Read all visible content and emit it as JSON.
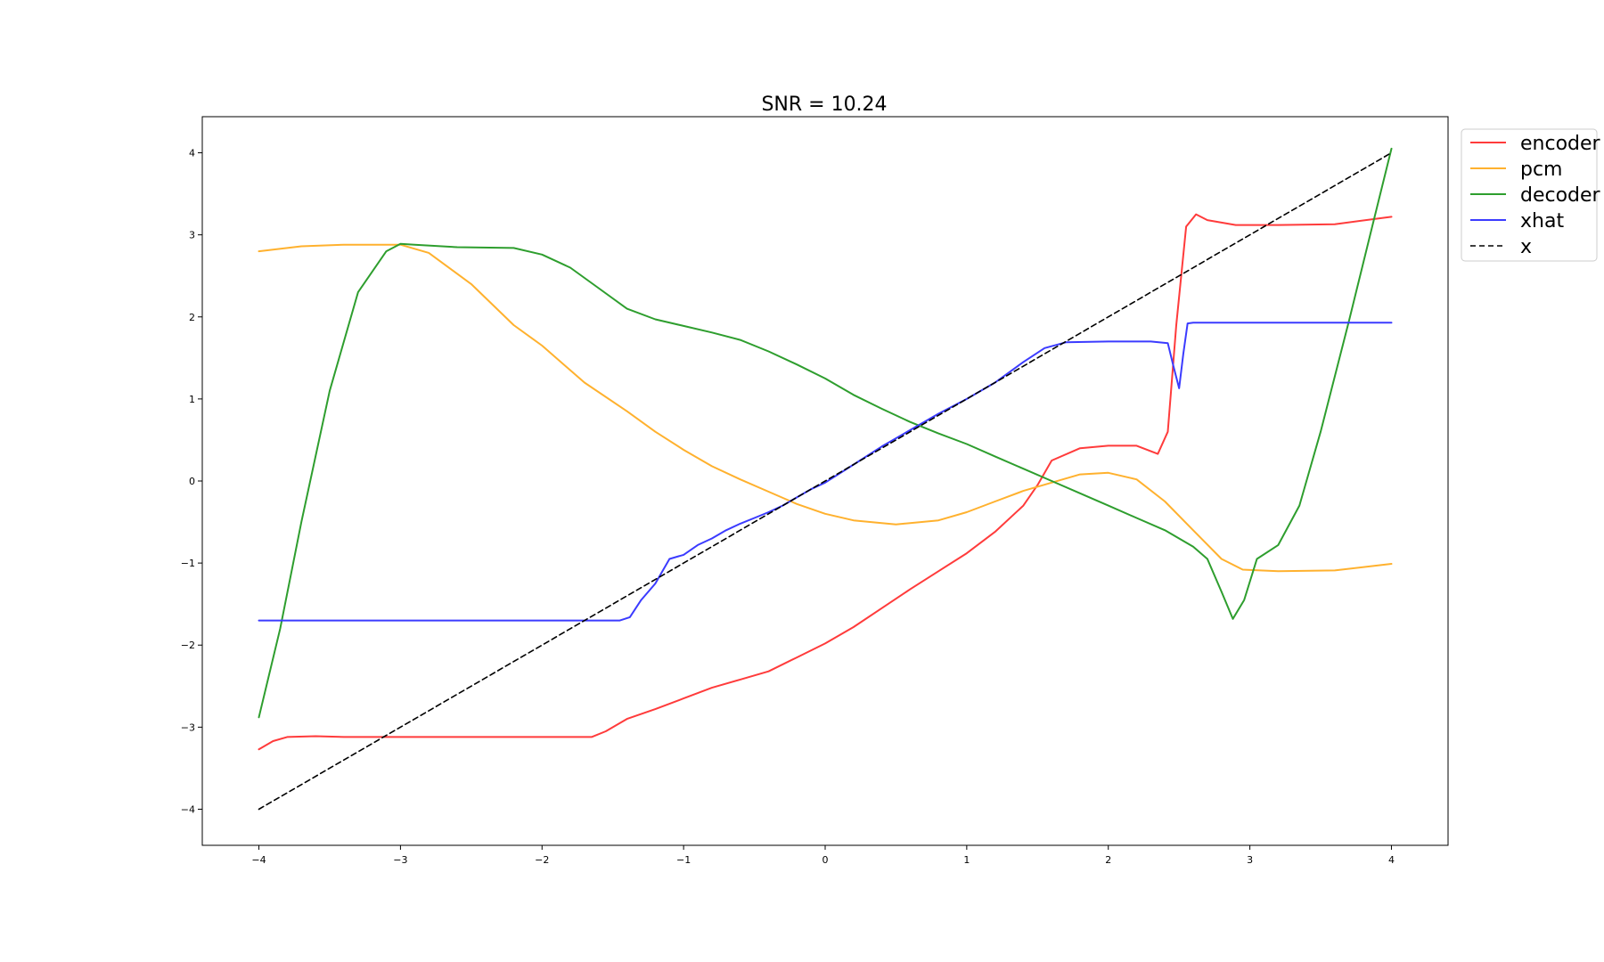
{
  "chart_data": {
    "type": "line",
    "title": "SNR = 10.24",
    "xlabel": "",
    "ylabel": "",
    "xlim": [
      -4.4,
      4.4
    ],
    "ylim": [
      -4.44,
      4.44
    ],
    "xticks": [
      -4,
      -3,
      -2,
      -1,
      0,
      1,
      2,
      3,
      4
    ],
    "yticks": [
      -4,
      -3,
      -2,
      -1,
      0,
      1,
      2,
      3,
      4
    ],
    "xtick_labels": [
      "−4",
      "−3",
      "−2",
      "−1",
      "0",
      "1",
      "2",
      "3",
      "4"
    ],
    "ytick_labels": [
      "−4",
      "−3",
      "−2",
      "−1",
      "0",
      "1",
      "2",
      "3",
      "4"
    ],
    "grid": false,
    "legend_placement": "outside-top-right",
    "series": [
      {
        "name": "encoder",
        "color": "#ff3b3b",
        "dash": "solid",
        "x": [
          -4.0,
          -3.9,
          -3.8,
          -3.6,
          -3.4,
          -3.0,
          -2.5,
          -2.0,
          -1.65,
          -1.55,
          -1.4,
          -1.2,
          -1.0,
          -0.8,
          -0.6,
          -0.4,
          -0.2,
          0.0,
          0.2,
          0.4,
          0.6,
          0.8,
          1.0,
          1.2,
          1.4,
          1.5,
          1.6,
          1.8,
          2.0,
          2.2,
          2.35,
          2.42,
          2.48,
          2.55,
          2.62,
          2.7,
          2.9,
          3.2,
          3.6,
          4.0
        ],
        "y": [
          -3.27,
          -3.17,
          -3.12,
          -3.11,
          -3.12,
          -3.12,
          -3.12,
          -3.12,
          -3.12,
          -3.05,
          -2.9,
          -2.78,
          -2.65,
          -2.52,
          -2.42,
          -2.32,
          -2.15,
          -1.98,
          -1.78,
          -1.55,
          -1.32,
          -1.1,
          -0.88,
          -0.62,
          -0.3,
          -0.05,
          0.25,
          0.4,
          0.43,
          0.43,
          0.33,
          0.6,
          1.9,
          3.1,
          3.25,
          3.18,
          3.12,
          3.12,
          3.13,
          3.22
        ]
      },
      {
        "name": "pcm",
        "color": "#ffb12e",
        "dash": "solid",
        "x": [
          -4.0,
          -3.7,
          -3.4,
          -3.0,
          -2.8,
          -2.5,
          -2.2,
          -2.0,
          -1.7,
          -1.4,
          -1.2,
          -1.0,
          -0.8,
          -0.6,
          -0.4,
          -0.2,
          0.0,
          0.2,
          0.5,
          0.8,
          1.0,
          1.2,
          1.4,
          1.6,
          1.8,
          2.0,
          2.2,
          2.4,
          2.6,
          2.8,
          2.95,
          3.2,
          3.6,
          4.0
        ],
        "y": [
          2.8,
          2.86,
          2.88,
          2.88,
          2.78,
          2.4,
          1.9,
          1.65,
          1.2,
          0.85,
          0.6,
          0.38,
          0.18,
          0.02,
          -0.13,
          -0.28,
          -0.4,
          -0.48,
          -0.53,
          -0.48,
          -0.38,
          -0.25,
          -0.12,
          -0.02,
          0.08,
          0.1,
          0.02,
          -0.25,
          -0.6,
          -0.95,
          -1.08,
          -1.1,
          -1.09,
          -1.01
        ]
      },
      {
        "name": "decoder",
        "color": "#2e9e2e",
        "dash": "solid",
        "x": [
          -4.0,
          -3.85,
          -3.7,
          -3.5,
          -3.3,
          -3.1,
          -3.0,
          -2.9,
          -2.6,
          -2.2,
          -2.0,
          -1.8,
          -1.6,
          -1.4,
          -1.2,
          -1.0,
          -0.8,
          -0.6,
          -0.4,
          -0.2,
          0.0,
          0.2,
          0.4,
          0.6,
          0.8,
          1.0,
          1.2,
          1.4,
          1.6,
          1.8,
          2.0,
          2.2,
          2.4,
          2.6,
          2.7,
          2.8,
          2.88,
          2.96,
          3.05,
          3.2,
          3.35,
          3.5,
          3.7,
          3.85,
          4.0
        ],
        "y": [
          -2.88,
          -1.8,
          -0.5,
          1.1,
          2.3,
          2.8,
          2.89,
          2.88,
          2.85,
          2.84,
          2.76,
          2.6,
          2.35,
          2.1,
          1.97,
          1.89,
          1.81,
          1.72,
          1.58,
          1.42,
          1.25,
          1.05,
          0.88,
          0.72,
          0.58,
          0.45,
          0.3,
          0.15,
          0.0,
          -0.15,
          -0.3,
          -0.45,
          -0.6,
          -0.8,
          -0.95,
          -1.35,
          -1.68,
          -1.45,
          -0.95,
          -0.78,
          -0.3,
          0.6,
          1.95,
          3.0,
          4.05
        ]
      },
      {
        "name": "xhat",
        "color": "#3b3bff",
        "dash": "solid",
        "x": [
          -4.0,
          -3.0,
          -2.0,
          -1.45,
          -1.38,
          -1.3,
          -1.2,
          -1.1,
          -1.0,
          -0.9,
          -0.8,
          -0.7,
          -0.6,
          -0.5,
          -0.4,
          -0.3,
          -0.2,
          -0.1,
          0.0,
          0.2,
          0.4,
          0.6,
          0.8,
          1.0,
          1.2,
          1.4,
          1.55,
          1.7,
          2.0,
          2.3,
          2.42,
          2.46,
          2.5,
          2.53,
          2.56,
          2.6,
          3.0,
          3.5,
          4.0
        ],
        "y": [
          -1.7,
          -1.7,
          -1.7,
          -1.7,
          -1.66,
          -1.45,
          -1.25,
          -0.95,
          -0.9,
          -0.78,
          -0.7,
          -0.6,
          -0.52,
          -0.45,
          -0.38,
          -0.3,
          -0.2,
          -0.1,
          -0.02,
          0.2,
          0.42,
          0.62,
          0.82,
          1.0,
          1.2,
          1.45,
          1.62,
          1.69,
          1.7,
          1.7,
          1.68,
          1.4,
          1.13,
          1.55,
          1.92,
          1.93,
          1.93,
          1.93,
          1.93
        ]
      },
      {
        "name": "x",
        "color": "#000000",
        "dash": "dashed",
        "x": [
          -4.0,
          4.0
        ],
        "y": [
          -4.0,
          4.0
        ]
      }
    ]
  }
}
